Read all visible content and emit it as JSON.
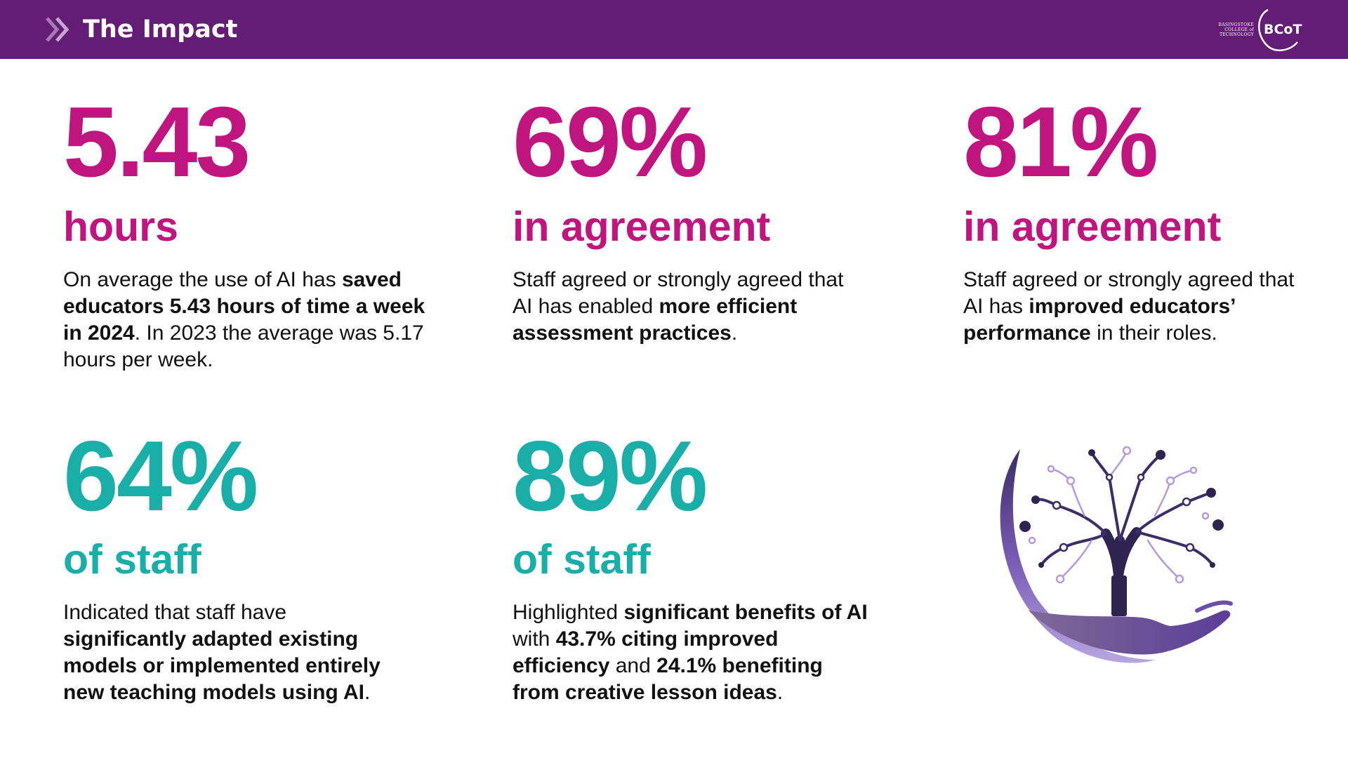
{
  "header": {
    "title": "The Impact",
    "chevron_icon": "double-chevron-right-icon",
    "logo": {
      "text_lines": [
        "BASINGSTOKE",
        "COLLEGE of",
        "TECHNOLOGY"
      ],
      "mark": "BCoT"
    }
  },
  "colors": {
    "header_bg": "#641d75",
    "magenta": "#c0147e",
    "teal": "#1aaea8"
  },
  "stats": [
    {
      "value": "5.43",
      "label": "hours",
      "desc": {
        "p1": "On average the use of AI has ",
        "b1": "saved educators 5.43 hours of time a week in 2024",
        "p2": ". In 2023 the average was 5.17 hours per week."
      }
    },
    {
      "value": "69%",
      "label": "in agreement",
      "desc": {
        "p1": "Staff agreed or strongly agreed that AI has enabled ",
        "b1": "more efficient assessment practices",
        "p2": "."
      }
    },
    {
      "value": "81%",
      "label": "in agreement",
      "desc": {
        "p1": "Staff agreed or strongly agreed that AI has ",
        "b1": "improved educators’ performance",
        "p2": " in their roles."
      }
    },
    {
      "value": "64%",
      "label": "of staff",
      "desc": {
        "p1": "Indicated that staff have ",
        "b1": "significantly adapted existing models or implemented entirely new teaching models using AI",
        "p2": "."
      }
    },
    {
      "value": "89%",
      "label": "of staff",
      "desc": {
        "p1": "Highlighted ",
        "b1": "significant benefits of AI",
        "p2": " with ",
        "b2": "43.7% citing improved efficiency",
        "p3": " and ",
        "b3": "24.1% benefiting from creative lesson ideas",
        "p4": "."
      }
    }
  ],
  "illustration": {
    "icon": "tree-in-hand-icon"
  }
}
